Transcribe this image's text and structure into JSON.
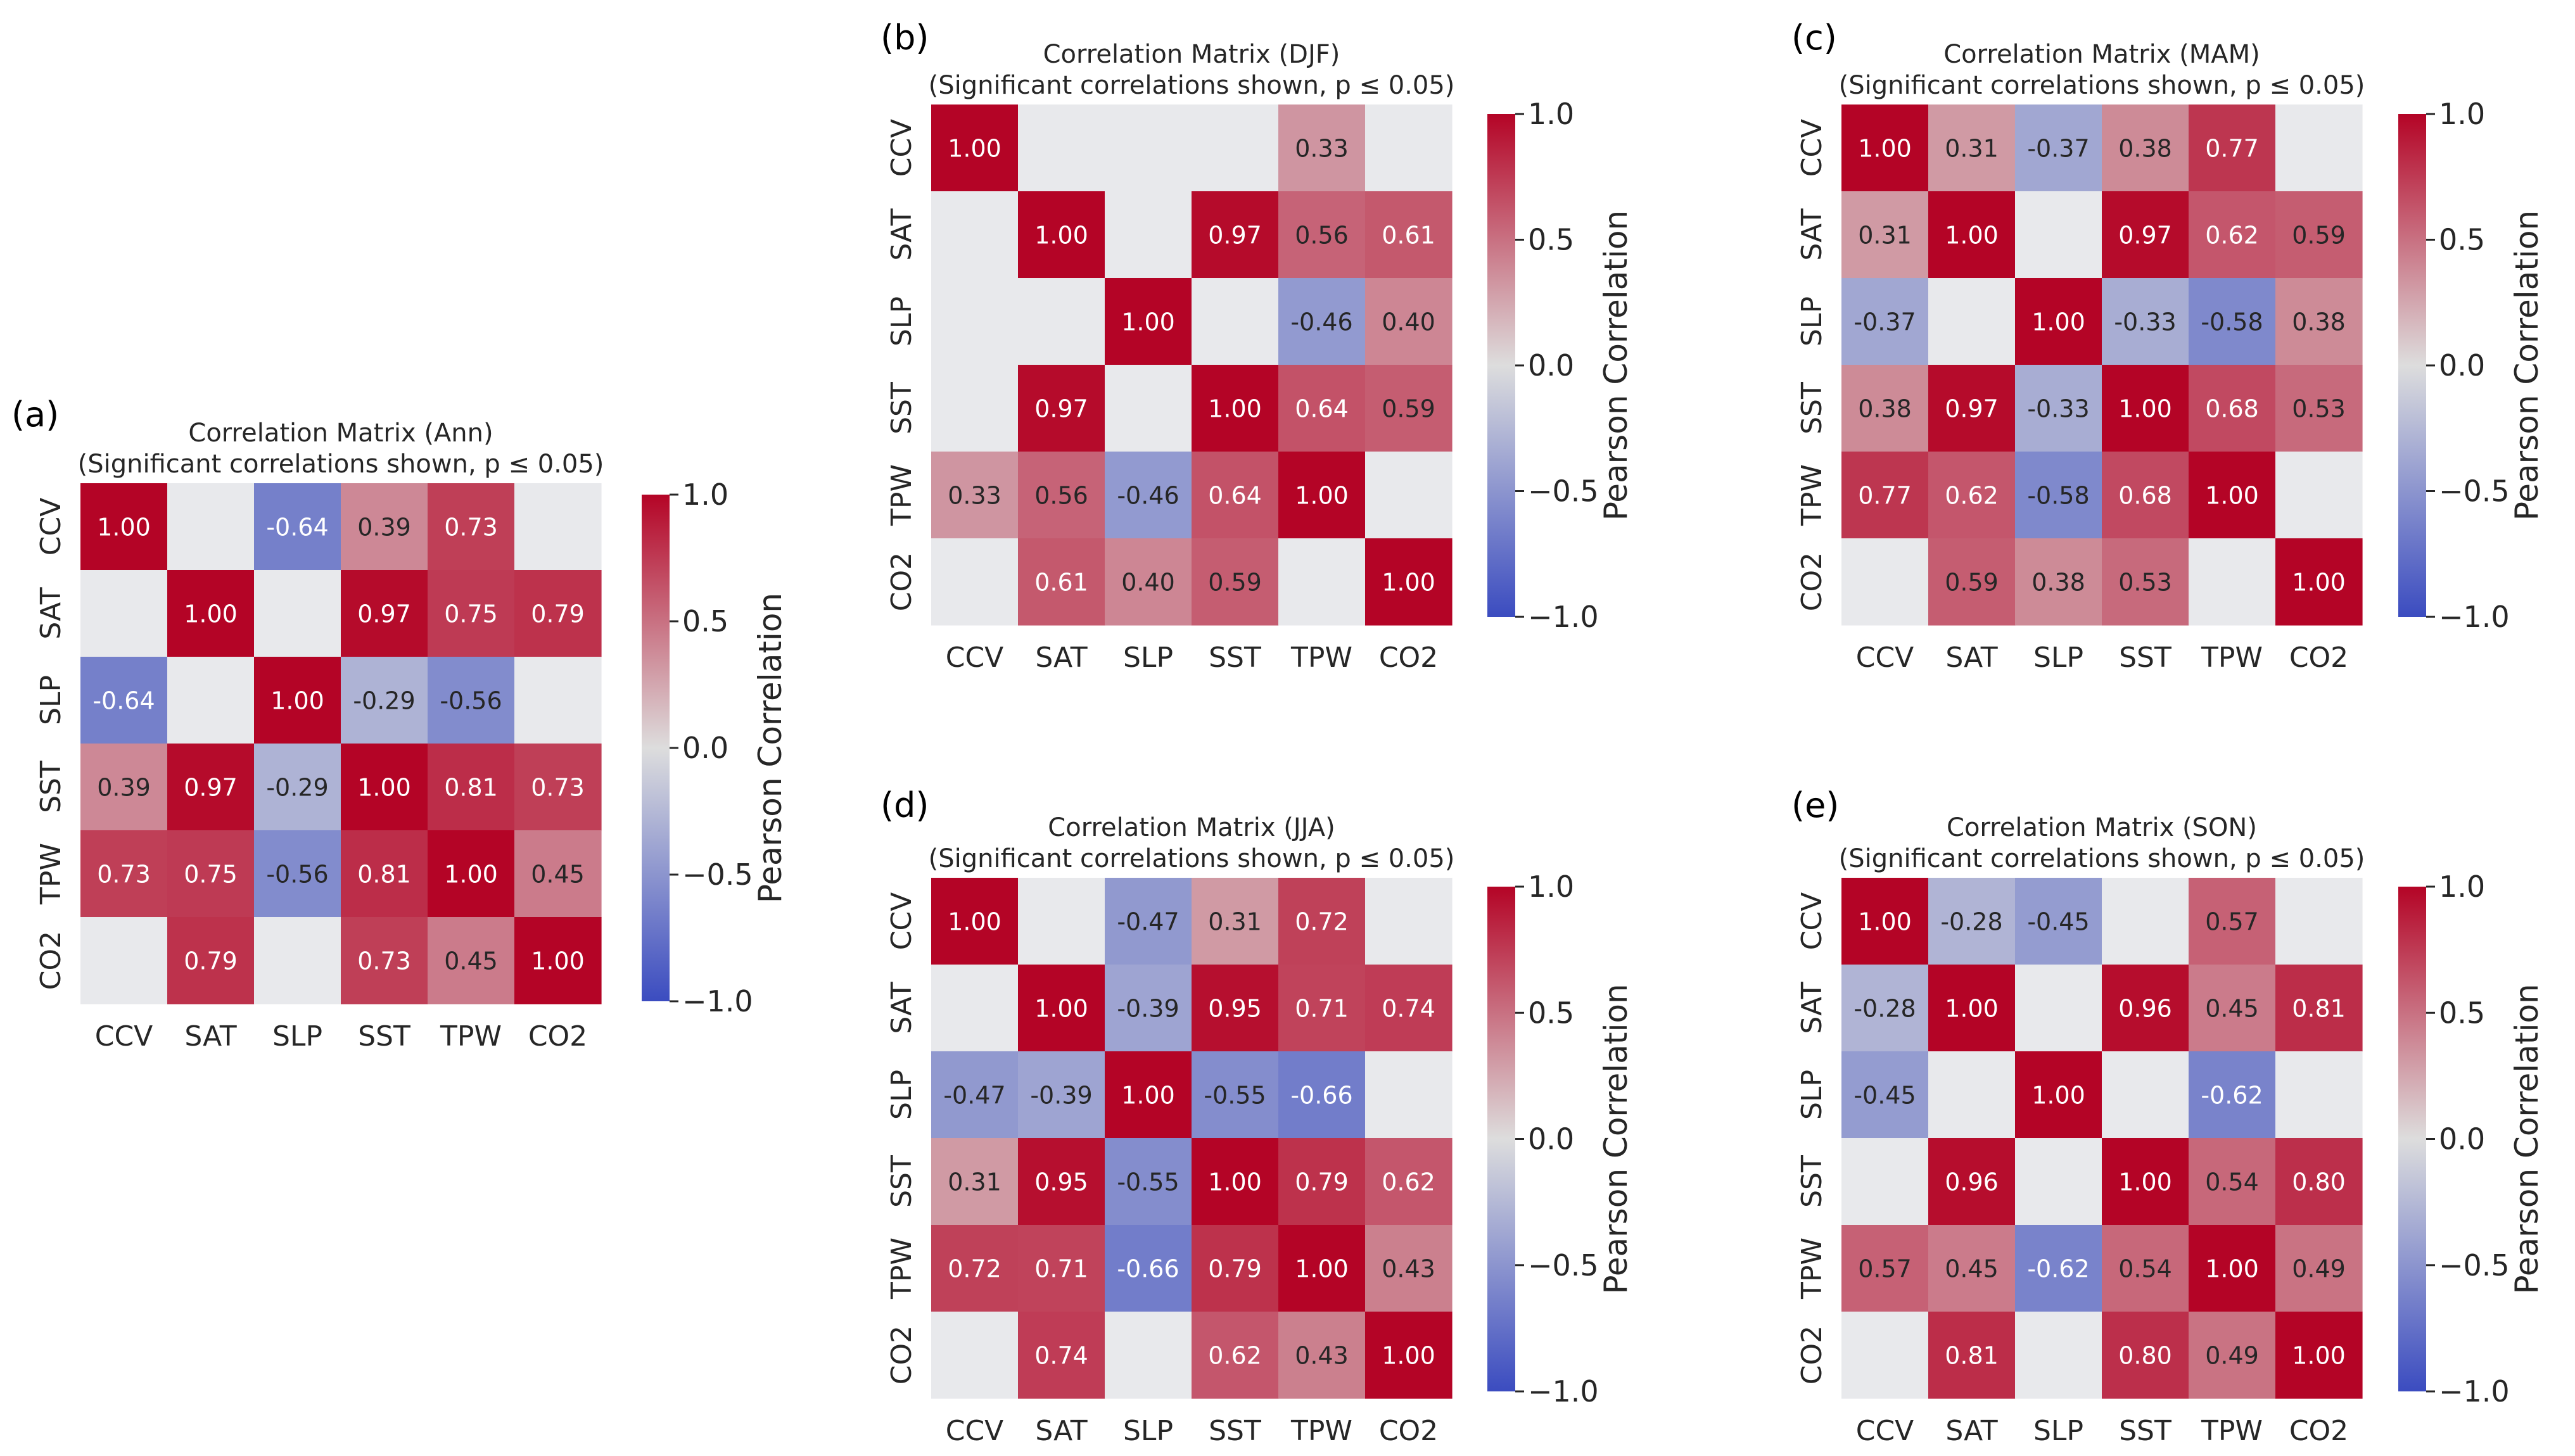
{
  "colors": {
    "neg_end": "#3b4cc0",
    "mid": "#dddddd",
    "pos_end": "#b40426",
    "empty": "#e8e9ec",
    "text_dark": "#262626",
    "text_light": "#ffffff"
  },
  "chart_data": [
    {
      "type": "heatmap",
      "panel": "(a)",
      "title": "Correlation Matrix (Ann)",
      "subtitle": "(Significant correlations shown, p ≤ 0.05)",
      "categories": [
        "CCV",
        "SAT",
        "SLP",
        "SST",
        "TPW",
        "CO2"
      ],
      "values": [
        [
          1.0,
          null,
          -0.64,
          0.39,
          0.73,
          null
        ],
        [
          null,
          1.0,
          null,
          0.97,
          0.75,
          0.79
        ],
        [
          -0.64,
          null,
          1.0,
          -0.29,
          -0.56,
          null
        ],
        [
          0.39,
          0.97,
          -0.29,
          1.0,
          0.81,
          0.73
        ],
        [
          0.73,
          0.75,
          -0.56,
          0.81,
          1.0,
          0.45
        ],
        [
          null,
          0.79,
          null,
          0.73,
          0.45,
          1.0
        ]
      ],
      "colorbar": {
        "label": "Pearson Correlation",
        "vmin": -1.0,
        "vmax": 1.0,
        "ticks": [
          "1.0",
          "0.5",
          "0.0",
          "−0.5",
          "−1.0"
        ]
      }
    },
    {
      "type": "heatmap",
      "panel": "(b)",
      "title": "Correlation Matrix (DJF)",
      "subtitle": "(Significant correlations shown, p ≤ 0.05)",
      "categories": [
        "CCV",
        "SAT",
        "SLP",
        "SST",
        "TPW",
        "CO2"
      ],
      "values": [
        [
          1.0,
          null,
          null,
          null,
          0.33,
          null
        ],
        [
          null,
          1.0,
          null,
          0.97,
          0.56,
          0.61
        ],
        [
          null,
          null,
          1.0,
          null,
          -0.46,
          0.4
        ],
        [
          null,
          0.97,
          null,
          1.0,
          0.64,
          0.59
        ],
        [
          0.33,
          0.56,
          -0.46,
          0.64,
          1.0,
          null
        ],
        [
          null,
          0.61,
          0.4,
          0.59,
          null,
          1.0
        ]
      ],
      "colorbar": {
        "label": "Pearson Correlation",
        "vmin": -1.0,
        "vmax": 1.0,
        "ticks": [
          "1.0",
          "0.5",
          "0.0",
          "−0.5",
          "−1.0"
        ]
      }
    },
    {
      "type": "heatmap",
      "panel": "(c)",
      "title": "Correlation Matrix (MAM)",
      "subtitle": "(Significant correlations shown, p ≤ 0.05)",
      "categories": [
        "CCV",
        "SAT",
        "SLP",
        "SST",
        "TPW",
        "CO2"
      ],
      "values": [
        [
          1.0,
          0.31,
          -0.37,
          0.38,
          0.77,
          null
        ],
        [
          0.31,
          1.0,
          null,
          0.97,
          0.62,
          0.59
        ],
        [
          -0.37,
          null,
          1.0,
          -0.33,
          -0.58,
          0.38
        ],
        [
          0.38,
          0.97,
          -0.33,
          1.0,
          0.68,
          0.53
        ],
        [
          0.77,
          0.62,
          -0.58,
          0.68,
          1.0,
          null
        ],
        [
          null,
          0.59,
          0.38,
          0.53,
          null,
          1.0
        ]
      ],
      "colorbar": {
        "label": "Pearson Correlation",
        "vmin": -1.0,
        "vmax": 1.0,
        "ticks": [
          "1.0",
          "0.5",
          "0.0",
          "−0.5",
          "−1.0"
        ]
      }
    },
    {
      "type": "heatmap",
      "panel": "(d)",
      "title": "Correlation Matrix (JJA)",
      "subtitle": "(Significant correlations shown, p ≤ 0.05)",
      "categories": [
        "CCV",
        "SAT",
        "SLP",
        "SST",
        "TPW",
        "CO2"
      ],
      "values": [
        [
          1.0,
          null,
          -0.47,
          0.31,
          0.72,
          null
        ],
        [
          null,
          1.0,
          -0.39,
          0.95,
          0.71,
          0.74
        ],
        [
          -0.47,
          -0.39,
          1.0,
          -0.55,
          -0.66,
          null
        ],
        [
          0.31,
          0.95,
          -0.55,
          1.0,
          0.79,
          0.62
        ],
        [
          0.72,
          0.71,
          -0.66,
          0.79,
          1.0,
          0.43
        ],
        [
          null,
          0.74,
          null,
          0.62,
          0.43,
          1.0
        ]
      ],
      "colorbar": {
        "label": "Pearson Correlation",
        "vmin": -1.0,
        "vmax": 1.0,
        "ticks": [
          "1.0",
          "0.5",
          "0.0",
          "−0.5",
          "−1.0"
        ]
      }
    },
    {
      "type": "heatmap",
      "panel": "(e)",
      "title": "Correlation Matrix (SON)",
      "subtitle": "(Significant correlations shown, p ≤ 0.05)",
      "categories": [
        "CCV",
        "SAT",
        "SLP",
        "SST",
        "TPW",
        "CO2"
      ],
      "values": [
        [
          1.0,
          -0.28,
          -0.45,
          null,
          0.57,
          null
        ],
        [
          -0.28,
          1.0,
          null,
          0.96,
          0.45,
          0.81
        ],
        [
          -0.45,
          null,
          1.0,
          null,
          -0.62,
          null
        ],
        [
          null,
          0.96,
          null,
          1.0,
          0.54,
          0.8
        ],
        [
          0.57,
          0.45,
          -0.62,
          0.54,
          1.0,
          0.49
        ],
        [
          null,
          0.81,
          null,
          0.8,
          0.49,
          1.0
        ]
      ],
      "colorbar": {
        "label": "Pearson Correlation",
        "vmin": -1.0,
        "vmax": 1.0,
        "ticks": [
          "1.0",
          "0.5",
          "0.0",
          "−0.5",
          "−1.0"
        ]
      }
    }
  ]
}
